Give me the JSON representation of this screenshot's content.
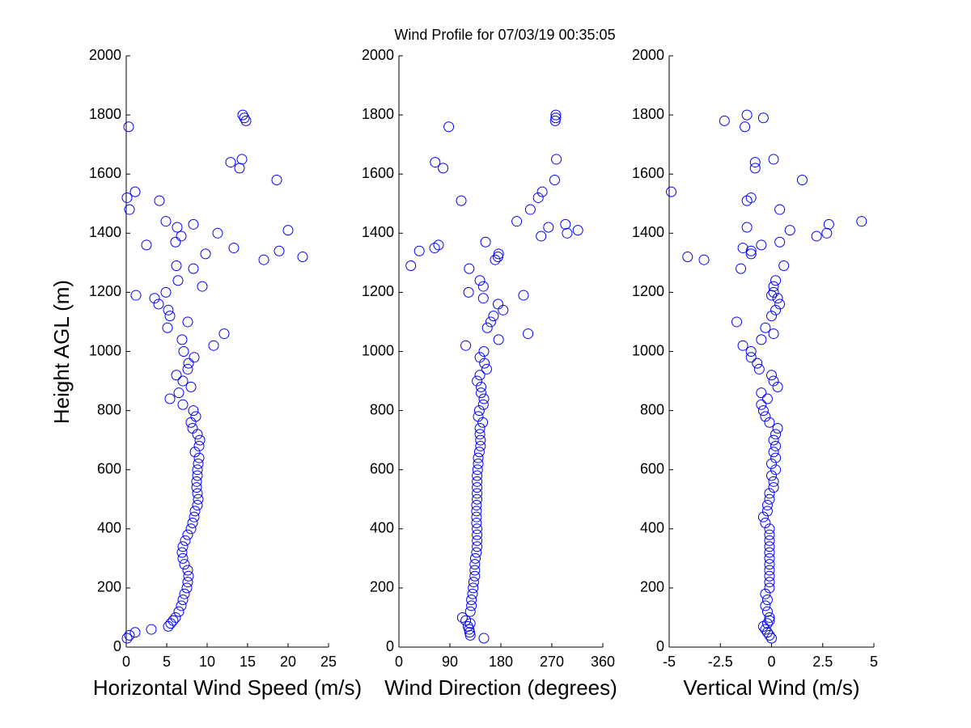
{
  "chart_data": [
    {
      "type": "scatter",
      "title": "Wind Profile for  07/03/19 00:35:05",
      "xlabel": "Horizontal Wind Speed (m/s)",
      "ylabel": "Height AGL (m)",
      "color": "#0000ff",
      "xlim": [
        0,
        25
      ],
      "xticks": [
        0,
        5,
        10,
        15,
        20,
        25
      ],
      "ylim": [
        0,
        2000
      ],
      "yticks": [
        0,
        200,
        400,
        600,
        800,
        1000,
        1200,
        1400,
        1600,
        1800,
        2000
      ],
      "x": [
        0.1,
        0.4,
        1.1,
        3.1,
        5.2,
        5.5,
        5.8,
        6.1,
        6.5,
        6.8,
        7.0,
        7.2,
        7.5,
        7.6,
        7.7,
        7.6,
        7.2,
        7.0,
        6.9,
        7.0,
        7.3,
        7.6,
        8.0,
        8.2,
        8.4,
        8.5,
        8.8,
        8.9,
        8.8,
        8.7,
        8.7,
        8.8,
        8.8,
        8.9,
        9.0,
        8.5,
        9.0,
        9.1,
        8.8,
        8.2,
        8.0,
        8.6,
        8.3,
        7.0,
        5.4,
        6.5,
        8.0,
        7.0,
        6.2,
        7.6,
        7.7,
        8.4,
        7.1,
        10.8,
        6.9,
        12.1,
        5.1,
        7.6,
        5.4,
        5.2,
        4.0,
        3.5,
        1.2,
        4.9,
        9.4,
        6.4,
        8.3,
        6.2,
        17.0,
        21.8,
        9.8,
        18.9,
        13.3,
        2.5,
        6.1,
        6.8,
        11.3,
        20.0,
        6.3,
        8.3,
        4.9,
        0.4,
        4.1,
        0.1,
        1.1,
        18.6,
        14.0,
        12.9,
        14.3,
        0.3,
        14.8,
        14.6,
        14.4
      ],
      "y": [
        30,
        40,
        50,
        60,
        70,
        80,
        90,
        100,
        120,
        140,
        160,
        180,
        200,
        220,
        240,
        260,
        280,
        300,
        320,
        340,
        360,
        380,
        400,
        420,
        440,
        460,
        480,
        500,
        520,
        540,
        560,
        580,
        600,
        620,
        640,
        660,
        680,
        700,
        720,
        740,
        760,
        780,
        800,
        820,
        840,
        860,
        880,
        900,
        920,
        940,
        960,
        980,
        1000,
        1020,
        1040,
        1060,
        1080,
        1100,
        1120,
        1140,
        1160,
        1180,
        1190,
        1200,
        1220,
        1240,
        1280,
        1290,
        1310,
        1320,
        1330,
        1340,
        1350,
        1360,
        1370,
        1390,
        1400,
        1410,
        1420,
        1430,
        1440,
        1480,
        1510,
        1520,
        1540,
        1580,
        1620,
        1640,
        1650,
        1760,
        1780,
        1790,
        1800
      ]
    },
    {
      "type": "scatter",
      "xlabel": "Wind Direction (degrees)",
      "color": "#0000ff",
      "xlim": [
        0,
        360
      ],
      "xticks": [
        0,
        90,
        180,
        270,
        360
      ],
      "ylim": [
        0,
        2000
      ],
      "yticks": [
        0,
        200,
        400,
        600,
        800,
        1000,
        1200,
        1400,
        1600,
        1800,
        2000
      ],
      "x": [
        150,
        126,
        125,
        124,
        122,
        126,
        118,
        112,
        126,
        128,
        128,
        130,
        131,
        132,
        134,
        134,
        134,
        135,
        137,
        138,
        138,
        138,
        138,
        137,
        137,
        137,
        137,
        138,
        138,
        138,
        138,
        138,
        139,
        140,
        140,
        142,
        144,
        144,
        143,
        143,
        148,
        140,
        142,
        149,
        150,
        145,
        145,
        138,
        143,
        155,
        151,
        143,
        150,
        118,
        176,
        228,
        156,
        162,
        167,
        184,
        175,
        149,
        220,
        123,
        149,
        143,
        124,
        21,
        170,
        175,
        176,
        36,
        63,
        70,
        153,
        251,
        297,
        316,
        264,
        294,
        208,
        232,
        110,
        246,
        253,
        275,
        78,
        64,
        278,
        88,
        276,
        277,
        277
      ],
      "y": [
        30,
        40,
        50,
        60,
        70,
        80,
        90,
        100,
        120,
        140,
        160,
        180,
        200,
        220,
        240,
        260,
        280,
        300,
        320,
        340,
        360,
        380,
        400,
        420,
        440,
        460,
        480,
        500,
        520,
        540,
        560,
        580,
        600,
        620,
        640,
        660,
        680,
        700,
        720,
        740,
        760,
        780,
        800,
        820,
        840,
        860,
        880,
        900,
        920,
        940,
        960,
        980,
        1000,
        1020,
        1040,
        1060,
        1080,
        1100,
        1120,
        1140,
        1160,
        1180,
        1190,
        1200,
        1220,
        1240,
        1280,
        1290,
        1310,
        1320,
        1330,
        1340,
        1350,
        1360,
        1370,
        1390,
        1400,
        1410,
        1420,
        1430,
        1440,
        1480,
        1510,
        1520,
        1540,
        1580,
        1620,
        1640,
        1650,
        1760,
        1780,
        1790,
        1800
      ]
    },
    {
      "type": "scatter",
      "xlabel": "Vertical Wind (m/s)",
      "color": "#0000ff",
      "xlim": [
        -5,
        5
      ],
      "xticks": [
        -5,
        -2.5,
        0,
        2.5,
        5
      ],
      "ylim": [
        0,
        2000
      ],
      "yticks": [
        0,
        200,
        400,
        600,
        800,
        1000,
        1200,
        1400,
        1600,
        1800,
        2000
      ],
      "x": [
        0.0,
        -0.1,
        -0.2,
        -0.3,
        -0.4,
        -0.2,
        -0.1,
        -0.1,
        -0.2,
        -0.3,
        -0.2,
        -0.3,
        -0.1,
        -0.1,
        -0.1,
        -0.1,
        -0.1,
        -0.1,
        -0.1,
        -0.1,
        -0.1,
        -0.1,
        -0.1,
        -0.3,
        -0.4,
        -0.2,
        -0.2,
        -0.1,
        -0.1,
        0.1,
        0.1,
        0.0,
        0.2,
        0.0,
        0.2,
        0.1,
        0.2,
        0.1,
        0.2,
        0.3,
        -0.1,
        -0.3,
        -0.4,
        -0.5,
        -0.2,
        -0.5,
        0.3,
        0.1,
        0.0,
        -0.6,
        -0.7,
        -1.0,
        -1.0,
        -1.4,
        -0.5,
        0.1,
        -0.3,
        -1.7,
        0.0,
        0.2,
        0.4,
        0.3,
        0.0,
        0.1,
        0.1,
        0.2,
        -1.5,
        0.6,
        -3.3,
        -4.1,
        -1.0,
        -1.0,
        -1.4,
        -0.5,
        0.4,
        2.2,
        2.7,
        0.9,
        -1.2,
        2.8,
        4.4,
        0.4,
        -1.2,
        -1.0,
        -4.9,
        1.5,
        -0.8,
        -0.8,
        0.1,
        -1.3,
        -2.3,
        -0.4,
        -1.2
      ],
      "y": [
        30,
        40,
        50,
        60,
        70,
        80,
        90,
        100,
        120,
        140,
        160,
        180,
        200,
        220,
        240,
        260,
        280,
        300,
        320,
        340,
        360,
        380,
        400,
        420,
        440,
        460,
        480,
        500,
        520,
        540,
        560,
        580,
        600,
        620,
        640,
        660,
        680,
        700,
        720,
        740,
        760,
        780,
        800,
        820,
        840,
        860,
        880,
        900,
        920,
        940,
        960,
        980,
        1000,
        1020,
        1040,
        1060,
        1080,
        1100,
        1120,
        1140,
        1160,
        1180,
        1190,
        1200,
        1220,
        1240,
        1280,
        1290,
        1310,
        1320,
        1330,
        1340,
        1350,
        1360,
        1370,
        1390,
        1400,
        1410,
        1420,
        1430,
        1440,
        1480,
        1510,
        1520,
        1540,
        1580,
        1620,
        1640,
        1650,
        1760,
        1780,
        1790,
        1800
      ]
    }
  ]
}
